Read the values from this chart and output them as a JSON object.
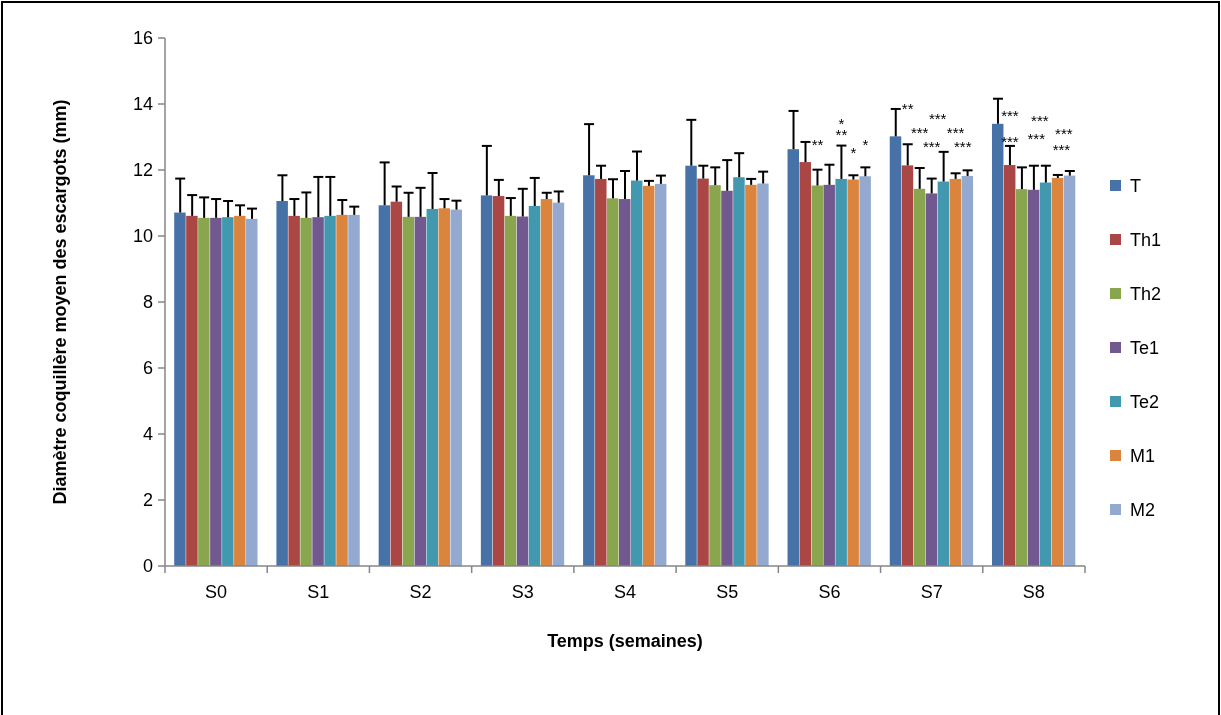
{
  "chart_data": {
    "type": "bar",
    "xlabel": "Temps (semaines)",
    "ylabel": "Diamètre coquillère  moyen des  escargots (mm)",
    "categories": [
      "S0",
      "S1",
      "S2",
      "S3",
      "S4",
      "S5",
      "S6",
      "S7",
      "S8"
    ],
    "ylim": [
      0,
      16
    ],
    "yticks": [
      0,
      2,
      4,
      6,
      8,
      10,
      12,
      14,
      16
    ],
    "grid": false,
    "legend": "right",
    "series": [
      {
        "name": "T",
        "color": "#4672a8",
        "values": [
          10.71,
          11.06,
          10.93,
          11.23,
          11.84,
          12.13,
          12.63,
          13.02,
          13.4
        ],
        "errors": [
          [
            10.71,
            11.74
          ],
          [
            11.06,
            11.84
          ],
          [
            10.93,
            12.23
          ],
          [
            11.23,
            12.73
          ],
          [
            11.84,
            13.39
          ],
          [
            12.13,
            13.52
          ],
          [
            12.63,
            13.79
          ],
          [
            13.02,
            13.85
          ],
          [
            13.4,
            14.16
          ]
        ]
      },
      {
        "name": "Th1",
        "color": "#aa4643",
        "values": [
          10.61,
          10.61,
          11.04,
          11.21,
          11.73,
          11.74,
          12.24,
          12.14,
          12.15
        ],
        "errors": [
          [
            10.61,
            11.24
          ],
          [
            10.61,
            11.12
          ],
          [
            11.04,
            11.5
          ],
          [
            11.21,
            11.7
          ],
          [
            11.73,
            12.13
          ],
          [
            11.74,
            12.13
          ],
          [
            12.24,
            12.85
          ],
          [
            12.14,
            12.78
          ],
          [
            12.15,
            12.73
          ]
        ]
      },
      {
        "name": "Th2",
        "color": "#89a54e",
        "values": [
          10.55,
          10.55,
          10.58,
          10.61,
          11.14,
          11.54,
          11.53,
          11.43,
          11.42
        ],
        "errors": [
          [
            10.55,
            11.17
          ],
          [
            10.55,
            11.32
          ],
          [
            10.58,
            11.31
          ],
          [
            10.61,
            11.15
          ],
          [
            11.14,
            11.72
          ],
          [
            11.54,
            12.08
          ],
          [
            11.53,
            12.01
          ],
          [
            11.43,
            12.06
          ],
          [
            11.42,
            12.08
          ]
        ]
      },
      {
        "name": "Te1",
        "color": "#71588f",
        "values": [
          10.55,
          10.57,
          10.58,
          10.59,
          11.12,
          11.37,
          11.55,
          11.29,
          11.4
        ],
        "errors": [
          [
            10.55,
            11.12
          ],
          [
            10.57,
            11.79
          ],
          [
            10.58,
            11.46
          ],
          [
            10.59,
            11.43
          ],
          [
            11.12,
            11.97
          ],
          [
            11.37,
            12.3
          ],
          [
            11.55,
            12.16
          ],
          [
            11.29,
            11.74
          ],
          [
            11.4,
            12.13
          ]
        ]
      },
      {
        "name": "Te2",
        "color": "#4198af",
        "values": [
          10.57,
          10.61,
          10.82,
          10.91,
          11.68,
          11.78,
          11.73,
          11.65,
          11.62
        ],
        "errors": [
          [
            10.57,
            11.06
          ],
          [
            10.61,
            11.79
          ],
          [
            10.82,
            11.91
          ],
          [
            10.91,
            11.76
          ],
          [
            11.68,
            12.56
          ],
          [
            11.78,
            12.51
          ],
          [
            11.73,
            12.74
          ],
          [
            11.65,
            12.55
          ],
          [
            11.62,
            12.13
          ]
        ]
      },
      {
        "name": "M1",
        "color": "#db843d",
        "values": [
          10.61,
          10.64,
          10.84,
          11.12,
          11.52,
          11.55,
          11.71,
          11.73,
          11.76
        ],
        "errors": [
          [
            10.61,
            10.93
          ],
          [
            10.64,
            11.09
          ],
          [
            10.84,
            11.12
          ],
          [
            11.12,
            11.31
          ],
          [
            11.52,
            11.67
          ],
          [
            11.55,
            11.73
          ],
          [
            11.71,
            11.84
          ],
          [
            11.73,
            11.9
          ],
          [
            11.76,
            11.85
          ]
        ]
      },
      {
        "name": "M2",
        "color": "#93a9cf",
        "values": [
          10.52,
          10.64,
          10.8,
          11.01,
          11.58,
          11.59,
          11.81,
          11.82,
          11.83
        ],
        "errors": [
          [
            10.52,
            10.83
          ],
          [
            10.64,
            10.89
          ],
          [
            10.8,
            11.07
          ],
          [
            11.01,
            11.35
          ],
          [
            11.58,
            11.83
          ],
          [
            11.59,
            11.95
          ],
          [
            11.81,
            12.08
          ],
          [
            11.82,
            11.99
          ],
          [
            11.83,
            11.97
          ]
        ]
      }
    ],
    "annotations": [
      "**",
      "**",
      "*",
      "*",
      "*",
      "**",
      "***",
      "***",
      "***",
      "***",
      "***",
      "***",
      "***",
      "***",
      "***",
      "***",
      "***"
    ]
  }
}
